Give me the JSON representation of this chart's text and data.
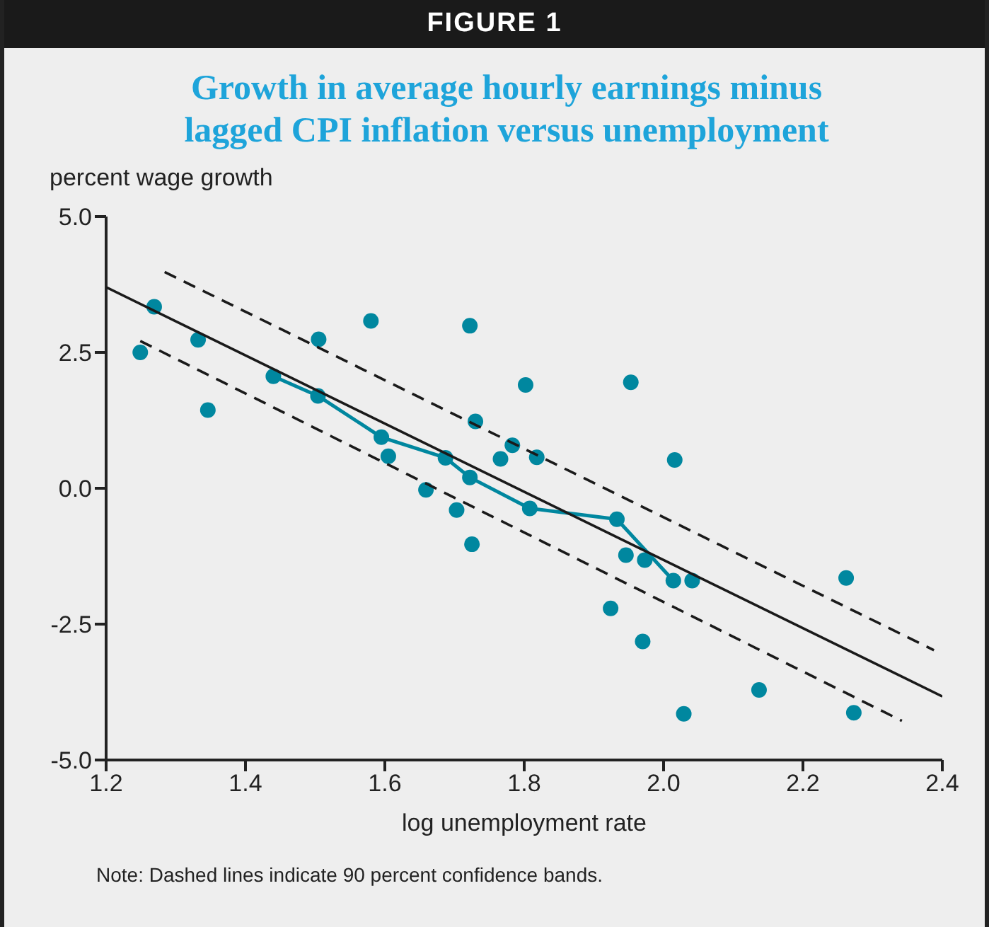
{
  "chart_data": {
    "type": "scatter",
    "subtitle": "FIGURE 1",
    "title": "Growth in average hourly earnings minus lagged CPI inflation versus unemployment",
    "xlabel": "log unemployment rate",
    "ylabel": "percent wage growth",
    "annotations": [
      "Note: Dashed lines indicate 90 percent confidence bands."
    ],
    "xlim": [
      1.2,
      2.4
    ],
    "xticks": [
      1.2,
      1.4,
      1.6,
      1.8,
      {
        "value": 2,
        "label": "2.0"
      },
      2.2,
      2.4
    ],
    "ylim": [
      -5,
      5
    ],
    "yticks": [
      {
        "value": -5,
        "label": "-5.0"
      },
      -2.5,
      {
        "value": 0,
        "label": "0.0"
      },
      2.5,
      {
        "value": 5,
        "label": "5.0"
      }
    ],
    "grid": false,
    "legend": false,
    "series": [
      {
        "color": "#00879f",
        "marker": "circle",
        "x": [
          1.269,
          1.249,
          1.332,
          1.346,
          1.58,
          1.505,
          1.722,
          1.802,
          1.73,
          1.783,
          1.766,
          1.818,
          1.605,
          1.659,
          1.703,
          1.725,
          1.953,
          2.016,
          1.946,
          1.973,
          2.041,
          2.262,
          1.924,
          1.97,
          2.137,
          2.029,
          2.273
        ],
        "values": [
          3.34,
          2.5,
          2.73,
          1.44,
          3.08,
          2.74,
          2.99,
          1.9,
          1.23,
          0.79,
          0.54,
          0.57,
          0.59,
          -0.03,
          -0.4,
          -1.03,
          1.95,
          0.52,
          -1.23,
          -1.32,
          -1.7,
          -1.65,
          -2.21,
          -2.82,
          -3.71,
          -4.15,
          -4.13
        ]
      },
      {
        "type": "line",
        "color": "#00879f",
        "marker": "circle",
        "line_style": "solid",
        "x": [
          1.44,
          1.504,
          1.595,
          1.687,
          1.722,
          1.808,
          1.933,
          2.014
        ],
        "values": [
          2.06,
          1.7,
          0.94,
          0.56,
          0.2,
          -0.37,
          -0.57,
          -1.7
        ]
      },
      {
        "type": "line",
        "color": "#1a1a1a",
        "marker": "none",
        "line_style": "solid",
        "x": [
          1.2,
          2.4
        ],
        "values": [
          3.7,
          -3.83
        ]
      },
      {
        "type": "line",
        "color": "#1a1a1a",
        "marker": "none",
        "line_style": "dashed",
        "x": [
          1.284,
          2.388
        ],
        "values": [
          3.98,
          -2.98
        ]
      },
      {
        "type": "line",
        "color": "#1a1a1a",
        "marker": "none",
        "line_style": "dashed",
        "x": [
          1.249,
          2.342
        ],
        "values": [
          2.71,
          -4.28
        ]
      }
    ]
  }
}
